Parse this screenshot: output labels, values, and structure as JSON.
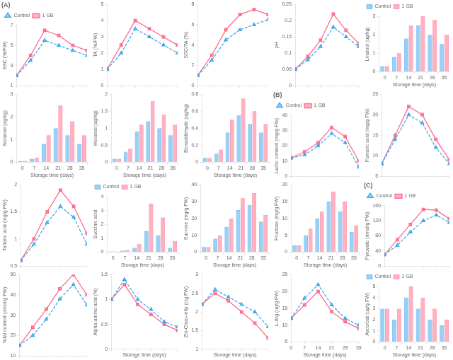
{
  "chart_data": [
    {
      "type": "line",
      "title": "(A)",
      "x": [
        0,
        7,
        14,
        21,
        28,
        35
      ],
      "xlim": [
        0,
        35
      ],
      "xticks": [
        0,
        7,
        14,
        21,
        28,
        35
      ],
      "y_label": "SSC (%/FW)",
      "ylim": [
        1,
        7
      ],
      "yticks": [
        1,
        3,
        5,
        7
      ],
      "series": [
        {
          "name": "Control",
          "marker": "triangle",
          "line_style": "dashed",
          "values": [
            2.0,
            3.5,
            5.5,
            5.0,
            4.5,
            4.0
          ]
        },
        {
          "name": "1 GB",
          "marker": "square",
          "line_style": "solid",
          "values": [
            2.0,
            4.0,
            6.5,
            6.0,
            5.0,
            4.5
          ]
        }
      ],
      "grid": false,
      "tick_labels": "y",
      "legend": "upper left"
    },
    {
      "type": "line",
      "x": [
        0,
        7,
        14,
        21,
        28,
        35
      ],
      "xlim": [
        0,
        35
      ],
      "xticks": [
        0,
        7,
        14,
        21,
        28,
        35
      ],
      "y_label": "TA (%/FW)",
      "ylim": [
        0,
        5
      ],
      "yticks": [
        0,
        1,
        2,
        3,
        4,
        5
      ],
      "series": [
        {
          "name": "Control",
          "marker": "triangle",
          "line_style": "dashed",
          "values": [
            1.0,
            2.0,
            3.5,
            3.0,
            2.5,
            2.0
          ]
        },
        {
          "name": "1 GB",
          "marker": "square",
          "line_style": "solid",
          "values": [
            1.0,
            2.5,
            4.0,
            3.5,
            3.0,
            2.5
          ]
        }
      ],
      "grid": false,
      "tick_labels": "y"
    },
    {
      "type": "line",
      "x": [
        0,
        7,
        14,
        21,
        28,
        35
      ],
      "xlim": [
        0,
        35
      ],
      "xticks": [
        0,
        7,
        14,
        21,
        28,
        35
      ],
      "y_label": "SSC/TA (%)",
      "ylim": [
        0,
        8
      ],
      "yticks": [
        0,
        2,
        4,
        6,
        8
      ],
      "series": [
        {
          "name": "Control",
          "marker": "triangle",
          "line_style": "dashed",
          "values": [
            1.0,
            2.5,
            4.5,
            5.5,
            6.0,
            6.5
          ]
        },
        {
          "name": "1 GB",
          "marker": "square",
          "line_style": "solid",
          "values": [
            1.0,
            3.0,
            5.5,
            7.0,
            7.5,
            7.0
          ]
        }
      ],
      "grid": false,
      "tick_labels": "y"
    },
    {
      "type": "line",
      "x": [
        0,
        7,
        14,
        21,
        28,
        35
      ],
      "xlim": [
        0,
        35
      ],
      "xticks": [
        0,
        7,
        14,
        21,
        28,
        35
      ],
      "y_label": "pH",
      "ylim": [
        0,
        0.25
      ],
      "yticks": [
        0,
        0.05,
        0.1,
        0.15,
        0.2,
        0.25
      ],
      "series": [
        {
          "name": "Control",
          "marker": "triangle",
          "line_style": "dashed",
          "values": [
            0.05,
            0.08,
            0.12,
            0.18,
            0.15,
            0.12
          ]
        },
        {
          "name": "1 GB",
          "marker": "square",
          "line_style": "solid",
          "values": [
            0.05,
            0.09,
            0.14,
            0.22,
            0.17,
            0.13
          ]
        }
      ],
      "grid": false,
      "tick_labels": "y"
    },
    {
      "type": "bar",
      "categories": [
        "0",
        "7",
        "14",
        "21",
        "28",
        "35"
      ],
      "x_label": "Storage time (days)",
      "y_label": "Linalool (ug/kg)",
      "ylim": [
        0,
        3
      ],
      "yticks": [
        0,
        1,
        2,
        3
      ],
      "series": [
        {
          "name": "Control",
          "values": [
            0.3,
            0.8,
            1.8,
            2.5,
            2.0,
            1.5
          ]
        },
        {
          "name": "1 GB",
          "values": [
            0.3,
            1.0,
            2.5,
            3.0,
            2.8,
            2.0
          ]
        }
      ],
      "grid": false,
      "legend": "upper left"
    },
    {
      "type": "bar",
      "categories": [
        "0",
        "7",
        "14",
        "21",
        "28",
        "35"
      ],
      "x_label": "Storage time (days)",
      "y_label": "Nonanal (ug/kg)",
      "ylim": [
        0,
        3
      ],
      "yticks": [
        0,
        1,
        2,
        3
      ],
      "series": [
        {
          "name": "Control",
          "values": [
            0.05,
            0.15,
            0.8,
            1.5,
            1.2,
            0.8
          ]
        },
        {
          "name": "1 GB",
          "values": [
            0.05,
            0.2,
            1.2,
            2.5,
            1.8,
            1.2
          ]
        }
      ],
      "grid": false
    },
    {
      "type": "bar",
      "categories": [
        "0",
        "7",
        "14",
        "21",
        "28",
        "35"
      ],
      "x_label": "Storage time (days)",
      "y_label": "Hexanal (ug/kg)",
      "ylim": [
        0,
        2
      ],
      "yticks": [
        0,
        0.5,
        1,
        1.5,
        2
      ],
      "series": [
        {
          "name": "Control",
          "values": [
            0.1,
            0.3,
            0.9,
            1.2,
            1.0,
            0.8
          ]
        },
        {
          "name": "1 GB",
          "values": [
            0.1,
            0.4,
            1.1,
            1.8,
            1.4,
            1.1
          ]
        }
      ],
      "grid": false
    },
    {
      "type": "bar",
      "categories": [
        "0",
        "7",
        "14",
        "21",
        "28",
        "35"
      ],
      "x_label": "Storage time (days)",
      "y_label": "Benzaldehyde (ug/kg)",
      "ylim": [
        0,
        0.8
      ],
      "yticks": [
        0,
        0.2,
        0.4,
        0.6,
        0.8
      ],
      "series": [
        {
          "name": "Control",
          "values": [
            0.05,
            0.1,
            0.35,
            0.55,
            0.45,
            0.35
          ]
        },
        {
          "name": "1 GB",
          "values": [
            0.05,
            0.15,
            0.5,
            0.75,
            0.6,
            0.45
          ]
        }
      ],
      "grid": false
    },
    {
      "type": "line",
      "title": "(B)",
      "x": [
        0,
        7,
        14,
        21,
        28,
        35
      ],
      "xlim": [
        0,
        35
      ],
      "xticks": [
        0,
        7,
        14,
        21,
        28,
        35
      ],
      "y_label": "Lactic content (mg/g FW)",
      "ylim": [
        0,
        40
      ],
      "yticks": [
        0,
        10,
        20,
        30,
        40
      ],
      "series": [
        {
          "name": "Control",
          "marker": "triangle",
          "line_style": "dashed",
          "values": [
            12,
            14,
            20,
            28,
            22,
            6
          ]
        },
        {
          "name": "1 GB",
          "marker": "square",
          "line_style": "solid",
          "values": [
            12,
            16,
            22,
            32,
            26,
            10
          ]
        }
      ],
      "grid": false,
      "tick_labels": "y",
      "legend": "upper left"
    },
    {
      "type": "line",
      "x": [
        0,
        7,
        14,
        21,
        28,
        35
      ],
      "xlim": [
        0,
        35
      ],
      "xticks": [
        0,
        7,
        14,
        21,
        28,
        35
      ],
      "y_label": "Fumaric acid (mg/g FW)",
      "ylim": [
        5,
        25
      ],
      "yticks": [
        5,
        10,
        15,
        20,
        25
      ],
      "series": [
        {
          "name": "Control",
          "marker": "triangle",
          "line_style": "dashed",
          "values": [
            8,
            14,
            20,
            18,
            12,
            8
          ]
        },
        {
          "name": "1 GB",
          "marker": "square",
          "line_style": "solid",
          "values": [
            8,
            15,
            22,
            20,
            14,
            9
          ]
        }
      ],
      "grid": false,
      "tick_labels": "y"
    },
    {
      "type": "line",
      "x": [
        0,
        7,
        14,
        21,
        28,
        35
      ],
      "xlim": [
        0,
        35
      ],
      "xticks": [
        0,
        7,
        14,
        21,
        28,
        35
      ],
      "y_label": "Tartaric acid (mg/g FW)",
      "ylim": [
        0.5,
        2
      ],
      "yticks": [
        0.5,
        1,
        1.5,
        2
      ],
      "series": [
        {
          "name": "Control",
          "marker": "triangle",
          "line_style": "dashed",
          "values": [
            0.6,
            0.9,
            1.3,
            1.6,
            1.4,
            0.9
          ]
        },
        {
          "name": "1 GB",
          "marker": "square",
          "line_style": "solid",
          "values": [
            0.6,
            1.0,
            1.5,
            1.9,
            1.6,
            1.1
          ]
        }
      ],
      "grid": false,
      "tick_labels": "y"
    },
    {
      "type": "bar",
      "categories": [
        "0",
        "7",
        "14",
        "21",
        "28",
        "35"
      ],
      "x_label": "Storage time (days)",
      "y_label": "Succinic acid",
      "ylim": [
        0,
        4
      ],
      "yticks": [
        0,
        1,
        2,
        3,
        4
      ],
      "series": [
        {
          "name": "Control",
          "values": [
            0.05,
            0.1,
            0.3,
            1.5,
            1.2,
            0.3
          ]
        },
        {
          "name": "1 GB",
          "values": [
            0.05,
            0.15,
            0.6,
            3.5,
            2.5,
            0.8
          ]
        }
      ],
      "grid": false,
      "legend": "upper left"
    },
    {
      "type": "bar",
      "categories": [
        "0",
        "7",
        "14",
        "21",
        "28",
        "35"
      ],
      "x_label": "Storage time (days)",
      "y_label": "Sucrose (mg/g FW)",
      "ylim": [
        0,
        40
      ],
      "yticks": [
        0,
        10,
        20,
        30,
        40
      ],
      "series": [
        {
          "name": "Control",
          "values": [
            3,
            8,
            15,
            25,
            28,
            18
          ]
        },
        {
          "name": "1 GB",
          "values": [
            3,
            10,
            20,
            32,
            35,
            22
          ]
        }
      ],
      "grid": false
    },
    {
      "type": "bar",
      "categories": [
        "0",
        "7",
        "14",
        "21",
        "28",
        "35"
      ],
      "x_label": "Storage time (days)",
      "y_label": "Fructose (mg/g FW)",
      "ylim": [
        0,
        20
      ],
      "yticks": [
        0,
        5,
        10,
        15,
        20
      ],
      "series": [
        {
          "name": "Control",
          "values": [
            2,
            5,
            10,
            15,
            12,
            6
          ]
        },
        {
          "name": "1 GB",
          "values": [
            2,
            7,
            12,
            18,
            15,
            8
          ]
        }
      ],
      "grid": false
    },
    {
      "type": "line",
      "title": "(C)",
      "x": [
        0,
        7,
        14,
        21,
        28,
        35
      ],
      "xlim": [
        0,
        35
      ],
      "xticks": [
        0,
        7,
        14,
        21,
        28,
        35
      ],
      "y_label": "Pyruvate (nmol/g FW)",
      "ylim": [
        0,
        160
      ],
      "yticks": [
        0,
        40,
        80,
        120,
        160
      ],
      "series": [
        {
          "name": "Control",
          "marker": "triangle",
          "line_style": "dashed",
          "values": [
            30,
            55,
            90,
            120,
            135,
            115
          ]
        },
        {
          "name": "1 GB",
          "marker": "square",
          "line_style": "solid",
          "values": [
            30,
            70,
            110,
            150,
            148,
            125
          ]
        }
      ],
      "grid": false,
      "tick_labels": "y",
      "legend": "upper left"
    },
    {
      "type": "line",
      "x": [
        0,
        7,
        14,
        21,
        28,
        35
      ],
      "xlim": [
        0,
        35
      ],
      "xticks": [
        0,
        7,
        14,
        21,
        28,
        35
      ],
      "y_label": "Total content (nmol/g FW)",
      "ylim": [
        10,
        50
      ],
      "yticks": [
        10,
        20,
        30,
        40,
        50
      ],
      "series": [
        {
          "name": "Control",
          "marker": "triangle",
          "line_style": "dashed",
          "values": [
            15,
            20,
            28,
            38,
            45,
            35
          ]
        },
        {
          "name": "1 GB",
          "marker": "square",
          "line_style": "solid",
          "values": [
            15,
            24,
            33,
            43,
            50,
            40
          ]
        }
      ],
      "grid": false,
      "tick_labels": "y"
    },
    {
      "type": "line",
      "x": [
        0,
        7,
        14,
        21,
        28,
        35
      ],
      "xlim": [
        0,
        35
      ],
      "xticks": [
        0,
        7,
        14,
        21,
        28,
        35
      ],
      "x_label": "Storage time (days)",
      "y_label": "Alpha-amino acid (%)",
      "ylim": [
        0,
        1.5
      ],
      "yticks": [
        0,
        0.5,
        1,
        1.5
      ],
      "series": [
        {
          "name": "Control",
          "marker": "triangle",
          "line_style": "dashed",
          "values": [
            1.0,
            1.4,
            1.0,
            0.8,
            0.55,
            0.45
          ]
        },
        {
          "name": "1 GB",
          "marker": "square",
          "line_style": "solid",
          "values": [
            1.0,
            1.3,
            0.9,
            0.7,
            0.5,
            0.38
          ]
        }
      ],
      "grid": false,
      "tick_labels": "y"
    },
    {
      "type": "line",
      "x": [
        0,
        7,
        14,
        21,
        28,
        35
      ],
      "xlim": [
        0,
        35
      ],
      "xticks": [
        0,
        7,
        14,
        21,
        28,
        35
      ],
      "x_label": "Storage time (days)",
      "y_label": "Zhi-Chao-mity (c/g FW)",
      "ylim": [
        1,
        3
      ],
      "yticks": [
        1,
        1.5,
        2,
        2.5,
        3
      ],
      "series": [
        {
          "name": "Control",
          "marker": "triangle",
          "line_style": "dashed",
          "values": [
            2.2,
            2.6,
            2.4,
            2.2,
            2.0,
            1.6
          ]
        },
        {
          "name": "1 GB",
          "marker": "square",
          "line_style": "solid",
          "values": [
            2.2,
            2.5,
            2.3,
            2.0,
            1.7,
            1.3
          ]
        }
      ],
      "grid": false,
      "tick_labels": "y"
    },
    {
      "type": "line",
      "x": [
        0,
        7,
        14,
        21,
        28,
        35
      ],
      "xlim": [
        0,
        35
      ],
      "xticks": [
        0,
        7,
        14,
        21,
        28,
        35
      ],
      "x_label": "Storage time (days)",
      "y_label": "L-Arg (ug/g FW)",
      "ylim": [
        5,
        25
      ],
      "yticks": [
        5,
        10,
        15,
        20,
        25
      ],
      "series": [
        {
          "name": "Control",
          "marker": "triangle",
          "line_style": "dashed",
          "values": [
            12,
            18,
            22,
            16,
            12,
            10
          ]
        },
        {
          "name": "1 GB",
          "marker": "square",
          "line_style": "solid",
          "values": [
            12,
            16,
            20,
            14,
            11,
            9
          ]
        }
      ],
      "grid": false
    },
    {
      "type": "bar",
      "categories": [
        "0",
        "7",
        "14",
        "21",
        "28",
        "35"
      ],
      "x_label": "Storage time (days)",
      "y_label": "Ascorbat (ug/g FW)",
      "ylim": [
        0,
        5
      ],
      "yticks": [
        0,
        1,
        2,
        3,
        4,
        5
      ],
      "series": [
        {
          "name": "Control",
          "values": [
            3,
            2,
            4,
            3,
            2,
            1.5
          ]
        },
        {
          "name": "1 GB",
          "values": [
            3,
            3,
            5,
            4,
            3,
            2
          ]
        }
      ],
      "grid": false,
      "legend": "upper left"
    }
  ]
}
